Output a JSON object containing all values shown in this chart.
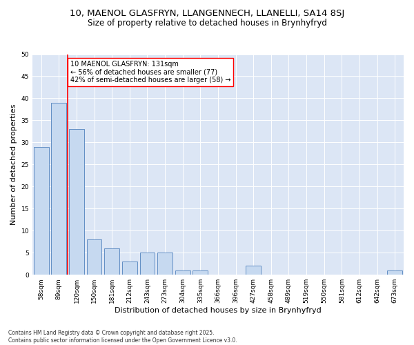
{
  "title_line1": "10, MAENOL GLASFRYN, LLANGENNECH, LLANELLI, SA14 8SJ",
  "title_line2": "Size of property relative to detached houses in Brynhyfryd",
  "xlabel": "Distribution of detached houses by size in Brynhyfryd",
  "ylabel": "Number of detached properties",
  "categories": [
    "58sqm",
    "89sqm",
    "120sqm",
    "150sqm",
    "181sqm",
    "212sqm",
    "243sqm",
    "273sqm",
    "304sqm",
    "335sqm",
    "366sqm",
    "396sqm",
    "427sqm",
    "458sqm",
    "489sqm",
    "519sqm",
    "550sqm",
    "581sqm",
    "612sqm",
    "642sqm",
    "673sqm"
  ],
  "values": [
    29,
    39,
    33,
    8,
    6,
    3,
    5,
    5,
    1,
    1,
    0,
    0,
    2,
    0,
    0,
    0,
    0,
    0,
    0,
    0,
    1
  ],
  "bar_color": "#c6d9f0",
  "bar_edge_color": "#4f81bd",
  "vline_x": 2,
  "vline_color": "red",
  "annotation_text": "10 MAENOL GLASFRYN: 131sqm\n← 56% of detached houses are smaller (77)\n42% of semi-detached houses are larger (58) →",
  "annotation_box_color": "white",
  "annotation_box_edge": "red",
  "ylim": [
    0,
    50
  ],
  "yticks": [
    0,
    5,
    10,
    15,
    20,
    25,
    30,
    35,
    40,
    45,
    50
  ],
  "background_color": "#dce6f5",
  "footer_text": "Contains HM Land Registry data © Crown copyright and database right 2025.\nContains public sector information licensed under the Open Government Licence v3.0.",
  "title_fontsize": 9.5,
  "subtitle_fontsize": 8.5,
  "axis_label_fontsize": 8,
  "tick_fontsize": 6.5,
  "annotation_fontsize": 7,
  "footer_fontsize": 5.5
}
